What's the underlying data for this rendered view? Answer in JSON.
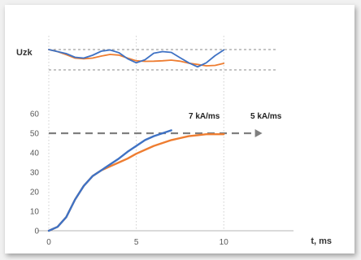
{
  "chart_data": [
    {
      "type": "line",
      "panel": "upper",
      "ylabel": "Uzk",
      "reference_lines": "upper and lower dashed limit lines",
      "x": [
        0,
        0.5,
        1,
        1.5,
        2,
        2.5,
        3,
        3.5,
        4,
        4.5,
        5,
        5.5,
        6,
        6.5,
        7,
        7.5,
        8,
        8.5,
        9,
        9.5,
        10
      ],
      "series": [
        {
          "color": "#3f72c4",
          "values": [
            1.0,
            0.9,
            0.8,
            0.62,
            0.58,
            0.72,
            0.92,
            0.98,
            0.85,
            0.55,
            0.35,
            0.5,
            0.82,
            0.9,
            0.86,
            0.6,
            0.35,
            0.15,
            0.35,
            0.7,
            0.98
          ]
        },
        {
          "color": "#ee7d31",
          "values": [
            1.0,
            0.9,
            0.75,
            0.58,
            0.55,
            0.58,
            0.68,
            0.76,
            0.73,
            0.58,
            0.45,
            0.42,
            0.43,
            0.45,
            0.48,
            0.43,
            0.33,
            0.27,
            0.2,
            0.22,
            0.32
          ]
        }
      ]
    },
    {
      "type": "line",
      "panel": "lower",
      "xlabel": "t, ms",
      "xlim": [
        0,
        10.5
      ],
      "ylim": [
        0,
        65
      ],
      "xticks": [
        "0",
        "5",
        "10"
      ],
      "yticks": [
        "0",
        "10",
        "20",
        "30",
        "40",
        "50",
        "60"
      ],
      "grid": "dotted gridlines at x = 0, 5, 10",
      "threshold": {
        "y": 50,
        "x_from": 0,
        "x_to": 12.2,
        "style": "dashed arrow",
        "color": "#7f7f7f"
      },
      "annotations": [
        "7 kA/ms",
        "5 kA/ms"
      ],
      "x": [
        0,
        0.5,
        1,
        1.5,
        2,
        2.5,
        3,
        3.5,
        4,
        4.5,
        5,
        5.5,
        6,
        6.5,
        7,
        7.5,
        8,
        8.5,
        9,
        9.5,
        10
      ],
      "series": [
        {
          "color": "#3f72c4",
          "values": [
            0,
            2,
            7,
            16,
            23,
            28,
            31,
            34,
            37,
            40.5,
            43.5,
            46.5,
            48.5,
            50,
            51.5,
            null,
            null,
            null,
            null,
            null,
            null
          ]
        },
        {
          "color": "#ee7d31",
          "values": [
            0,
            2,
            7,
            16,
            23,
            28,
            31,
            33,
            35,
            37,
            39.5,
            41.5,
            43.5,
            45,
            46.5,
            47.5,
            48.5,
            49,
            49.5,
            49.5,
            49.5
          ]
        }
      ]
    }
  ]
}
